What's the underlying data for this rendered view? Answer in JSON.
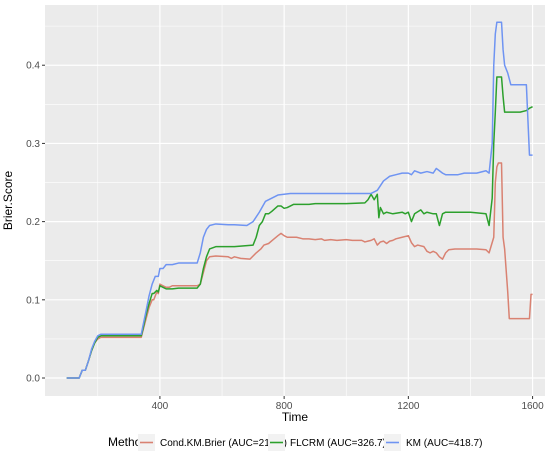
{
  "chart_data": {
    "type": "line",
    "xlabel": "Time",
    "ylabel": "Brier.Score",
    "xlim": [
      30,
      1640
    ],
    "ylim": [
      -0.023,
      0.477
    ],
    "xticks": [
      400,
      800,
      1200,
      1600
    ],
    "yticks": [
      0.0,
      0.1,
      0.2,
      0.3,
      0.4
    ],
    "xtick_labels": [
      "400",
      "800",
      "1200",
      "1600"
    ],
    "ytick_labels": [
      "0.0",
      "0.1",
      "0.2",
      "0.3",
      "0.4"
    ],
    "grid": true,
    "legend_title": "Method",
    "legend_position": "bottom",
    "series": [
      {
        "name": "Cond.KM.Brier (AUC=219.5)",
        "color": "#D98272",
        "points": [
          [
            100,
            0.0
          ],
          [
            140,
            0.0
          ],
          [
            150,
            0.01
          ],
          [
            160,
            0.01
          ],
          [
            170,
            0.022
          ],
          [
            180,
            0.035
          ],
          [
            190,
            0.045
          ],
          [
            200,
            0.05
          ],
          [
            210,
            0.052
          ],
          [
            230,
            0.052
          ],
          [
            340,
            0.052
          ],
          [
            345,
            0.06
          ],
          [
            355,
            0.075
          ],
          [
            365,
            0.09
          ],
          [
            375,
            0.1
          ],
          [
            380,
            0.1
          ],
          [
            390,
            0.11
          ],
          [
            395,
            0.108
          ],
          [
            400,
            0.12
          ],
          [
            410,
            0.118
          ],
          [
            420,
            0.116
          ],
          [
            430,
            0.116
          ],
          [
            440,
            0.118
          ],
          [
            460,
            0.118
          ],
          [
            520,
            0.118
          ],
          [
            530,
            0.12
          ],
          [
            540,
            0.135
          ],
          [
            550,
            0.15
          ],
          [
            560,
            0.155
          ],
          [
            580,
            0.156
          ],
          [
            620,
            0.155
          ],
          [
            630,
            0.153
          ],
          [
            640,
            0.155
          ],
          [
            660,
            0.153
          ],
          [
            690,
            0.152
          ],
          [
            710,
            0.16
          ],
          [
            725,
            0.165
          ],
          [
            735,
            0.17
          ],
          [
            750,
            0.172
          ],
          [
            765,
            0.177
          ],
          [
            780,
            0.182
          ],
          [
            790,
            0.185
          ],
          [
            800,
            0.182
          ],
          [
            810,
            0.18
          ],
          [
            840,
            0.18
          ],
          [
            860,
            0.178
          ],
          [
            880,
            0.178
          ],
          [
            900,
            0.177
          ],
          [
            920,
            0.178
          ],
          [
            930,
            0.176
          ],
          [
            950,
            0.177
          ],
          [
            970,
            0.176
          ],
          [
            1000,
            0.177
          ],
          [
            1020,
            0.176
          ],
          [
            1050,
            0.176
          ],
          [
            1060,
            0.174
          ],
          [
            1070,
            0.175
          ],
          [
            1080,
            0.176
          ],
          [
            1090,
            0.178
          ],
          [
            1100,
            0.17
          ],
          [
            1110,
            0.174
          ],
          [
            1120,
            0.175
          ],
          [
            1130,
            0.172
          ],
          [
            1140,
            0.175
          ],
          [
            1150,
            0.176
          ],
          [
            1160,
            0.178
          ],
          [
            1180,
            0.18
          ],
          [
            1200,
            0.182
          ],
          [
            1210,
            0.173
          ],
          [
            1220,
            0.168
          ],
          [
            1230,
            0.17
          ],
          [
            1250,
            0.168
          ],
          [
            1260,
            0.162
          ],
          [
            1270,
            0.16
          ],
          [
            1280,
            0.162
          ],
          [
            1290,
            0.16
          ],
          [
            1300,
            0.155
          ],
          [
            1310,
            0.152
          ],
          [
            1320,
            0.16
          ],
          [
            1330,
            0.164
          ],
          [
            1350,
            0.165
          ],
          [
            1380,
            0.165
          ],
          [
            1420,
            0.165
          ],
          [
            1450,
            0.164
          ],
          [
            1460,
            0.16
          ],
          [
            1475,
            0.18
          ],
          [
            1480,
            0.25
          ],
          [
            1485,
            0.27
          ],
          [
            1490,
            0.275
          ],
          [
            1500,
            0.275
          ],
          [
            1505,
            0.18
          ],
          [
            1510,
            0.165
          ],
          [
            1520,
            0.11
          ],
          [
            1525,
            0.076
          ],
          [
            1540,
            0.076
          ],
          [
            1590,
            0.076
          ],
          [
            1595,
            0.107
          ],
          [
            1600,
            0.107
          ]
        ]
      },
      {
        "name": "FLCRM (AUC=326.7)",
        "color": "#2CA02C",
        "points": [
          [
            100,
            0.0
          ],
          [
            140,
            0.0
          ],
          [
            150,
            0.01
          ],
          [
            160,
            0.01
          ],
          [
            170,
            0.022
          ],
          [
            180,
            0.035
          ],
          [
            190,
            0.045
          ],
          [
            200,
            0.052
          ],
          [
            210,
            0.054
          ],
          [
            230,
            0.054
          ],
          [
            340,
            0.054
          ],
          [
            345,
            0.062
          ],
          [
            355,
            0.08
          ],
          [
            365,
            0.095
          ],
          [
            375,
            0.108
          ],
          [
            380,
            0.108
          ],
          [
            390,
            0.112
          ],
          [
            395,
            0.11
          ],
          [
            400,
            0.118
          ],
          [
            410,
            0.116
          ],
          [
            420,
            0.114
          ],
          [
            440,
            0.114
          ],
          [
            460,
            0.115
          ],
          [
            520,
            0.115
          ],
          [
            530,
            0.12
          ],
          [
            540,
            0.14
          ],
          [
            550,
            0.155
          ],
          [
            560,
            0.165
          ],
          [
            580,
            0.168
          ],
          [
            640,
            0.168
          ],
          [
            700,
            0.17
          ],
          [
            710,
            0.18
          ],
          [
            720,
            0.195
          ],
          [
            730,
            0.2
          ],
          [
            740,
            0.21
          ],
          [
            750,
            0.21
          ],
          [
            760,
            0.213
          ],
          [
            780,
            0.22
          ],
          [
            790,
            0.22
          ],
          [
            800,
            0.217
          ],
          [
            810,
            0.218
          ],
          [
            830,
            0.222
          ],
          [
            880,
            0.222
          ],
          [
            900,
            0.223
          ],
          [
            1000,
            0.223
          ],
          [
            1060,
            0.224
          ],
          [
            1070,
            0.228
          ],
          [
            1080,
            0.235
          ],
          [
            1090,
            0.228
          ],
          [
            1100,
            0.235
          ],
          [
            1105,
            0.205
          ],
          [
            1110,
            0.218
          ],
          [
            1120,
            0.21
          ],
          [
            1130,
            0.212
          ],
          [
            1150,
            0.21
          ],
          [
            1180,
            0.212
          ],
          [
            1190,
            0.21
          ],
          [
            1200,
            0.212
          ],
          [
            1210,
            0.2
          ],
          [
            1220,
            0.21
          ],
          [
            1240,
            0.215
          ],
          [
            1250,
            0.21
          ],
          [
            1260,
            0.212
          ],
          [
            1280,
            0.21
          ],
          [
            1290,
            0.21
          ],
          [
            1300,
            0.195
          ],
          [
            1310,
            0.21
          ],
          [
            1320,
            0.212
          ],
          [
            1350,
            0.212
          ],
          [
            1400,
            0.212
          ],
          [
            1450,
            0.21
          ],
          [
            1460,
            0.195
          ],
          [
            1470,
            0.23
          ],
          [
            1475,
            0.3
          ],
          [
            1480,
            0.34
          ],
          [
            1485,
            0.385
          ],
          [
            1500,
            0.385
          ],
          [
            1505,
            0.36
          ],
          [
            1510,
            0.34
          ],
          [
            1520,
            0.34
          ],
          [
            1530,
            0.34
          ],
          [
            1560,
            0.34
          ],
          [
            1580,
            0.342
          ],
          [
            1590,
            0.345
          ],
          [
            1600,
            0.347
          ]
        ]
      },
      {
        "name": "KM (AUC=418.7)",
        "color": "#6F94F2",
        "points": [
          [
            100,
            0.0
          ],
          [
            140,
            0.0
          ],
          [
            150,
            0.01
          ],
          [
            160,
            0.01
          ],
          [
            170,
            0.022
          ],
          [
            180,
            0.037
          ],
          [
            190,
            0.047
          ],
          [
            200,
            0.054
          ],
          [
            210,
            0.056
          ],
          [
            230,
            0.056
          ],
          [
            340,
            0.056
          ],
          [
            345,
            0.066
          ],
          [
            355,
            0.085
          ],
          [
            365,
            0.105
          ],
          [
            375,
            0.12
          ],
          [
            385,
            0.13
          ],
          [
            395,
            0.13
          ],
          [
            400,
            0.14
          ],
          [
            410,
            0.14
          ],
          [
            420,
            0.145
          ],
          [
            440,
            0.145
          ],
          [
            460,
            0.147
          ],
          [
            520,
            0.147
          ],
          [
            530,
            0.16
          ],
          [
            540,
            0.18
          ],
          [
            550,
            0.19
          ],
          [
            560,
            0.195
          ],
          [
            580,
            0.197
          ],
          [
            620,
            0.196
          ],
          [
            640,
            0.196
          ],
          [
            680,
            0.195
          ],
          [
            700,
            0.2
          ],
          [
            720,
            0.212
          ],
          [
            740,
            0.226
          ],
          [
            760,
            0.23
          ],
          [
            780,
            0.234
          ],
          [
            800,
            0.235
          ],
          [
            820,
            0.236
          ],
          [
            880,
            0.236
          ],
          [
            900,
            0.236
          ],
          [
            1000,
            0.236
          ],
          [
            1060,
            0.236
          ],
          [
            1080,
            0.236
          ],
          [
            1100,
            0.24
          ],
          [
            1120,
            0.252
          ],
          [
            1140,
            0.258
          ],
          [
            1160,
            0.26
          ],
          [
            1180,
            0.262
          ],
          [
            1200,
            0.262
          ],
          [
            1210,
            0.26
          ],
          [
            1220,
            0.265
          ],
          [
            1240,
            0.262
          ],
          [
            1260,
            0.264
          ],
          [
            1280,
            0.262
          ],
          [
            1290,
            0.268
          ],
          [
            1300,
            0.265
          ],
          [
            1310,
            0.262
          ],
          [
            1320,
            0.26
          ],
          [
            1360,
            0.26
          ],
          [
            1380,
            0.262
          ],
          [
            1420,
            0.262
          ],
          [
            1450,
            0.265
          ],
          [
            1460,
            0.262
          ],
          [
            1470,
            0.3
          ],
          [
            1475,
            0.4
          ],
          [
            1480,
            0.44
          ],
          [
            1485,
            0.455
          ],
          [
            1500,
            0.455
          ],
          [
            1505,
            0.42
          ],
          [
            1510,
            0.4
          ],
          [
            1520,
            0.39
          ],
          [
            1530,
            0.375
          ],
          [
            1580,
            0.375
          ],
          [
            1590,
            0.285
          ],
          [
            1600,
            0.285
          ]
        ]
      }
    ]
  }
}
